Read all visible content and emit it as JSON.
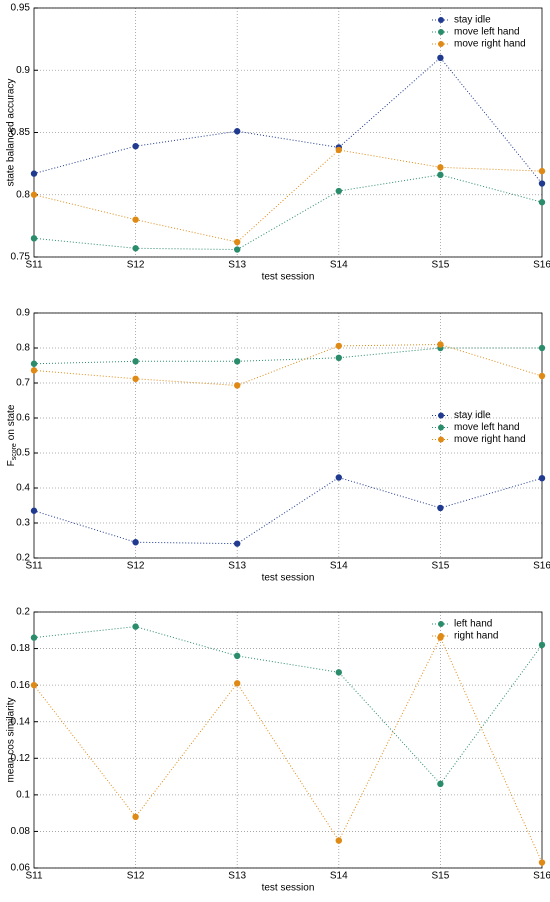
{
  "chart_data": [
    {
      "type": "line",
      "ylabel": "state balanced accuracy",
      "xlabel": "test session",
      "categories": [
        "S11",
        "S12",
        "S13",
        "S14",
        "S15",
        "S16"
      ],
      "series": [
        {
          "name": "stay idle",
          "color": "#1f3a8f",
          "values": [
            0.817,
            0.839,
            0.851,
            0.838,
            0.91,
            0.809
          ]
        },
        {
          "name": "move left hand",
          "color": "#2a8c6b",
          "values": [
            0.765,
            0.757,
            0.756,
            0.803,
            0.816,
            0.794
          ]
        },
        {
          "name": "move right hand",
          "color": "#e08a16",
          "values": [
            0.8,
            0.78,
            0.762,
            0.836,
            0.822,
            0.819
          ]
        }
      ],
      "ylim": [
        0.75,
        0.95
      ],
      "yticks": [
        0.75,
        0.8,
        0.85,
        0.9,
        0.95
      ],
      "grid": true,
      "legend": "upper right"
    },
    {
      "type": "line",
      "ylabel_parts": [
        "F",
        "score",
        "on state"
      ],
      "xlabel": "test session",
      "categories": [
        "S11",
        "S12",
        "S13",
        "S14",
        "S15",
        "S16"
      ],
      "series": [
        {
          "name": "stay idle",
          "color": "#1f3a8f",
          "values": [
            0.335,
            0.245,
            0.241,
            0.43,
            0.343,
            0.428
          ]
        },
        {
          "name": "move left hand",
          "color": "#2a8c6b",
          "values": [
            0.755,
            0.762,
            0.762,
            0.772,
            0.8,
            0.8
          ]
        },
        {
          "name": "move right hand",
          "color": "#e08a16",
          "values": [
            0.736,
            0.712,
            0.693,
            0.806,
            0.81,
            0.72
          ]
        }
      ],
      "ylim": [
        0.2,
        0.9
      ],
      "yticks": [
        0.2,
        0.3,
        0.4,
        0.5,
        0.6,
        0.7,
        0.8,
        0.9
      ],
      "grid": true,
      "legend": "center right"
    },
    {
      "type": "line",
      "ylabel": "mean cos similarity",
      "xlabel": "test session",
      "categories": [
        "S11",
        "S12",
        "S13",
        "S14",
        "S15",
        "S16"
      ],
      "series": [
        {
          "name": "left hand",
          "color": "#2a8c6b",
          "values": [
            0.186,
            0.192,
            0.176,
            0.167,
            0.106,
            0.182
          ]
        },
        {
          "name": "right hand",
          "color": "#e08a16",
          "values": [
            0.16,
            0.088,
            0.161,
            0.075,
            0.186,
            0.063
          ]
        }
      ],
      "ylim": [
        0.06,
        0.2
      ],
      "yticks": [
        0.06,
        0.08,
        0.1,
        0.12,
        0.14,
        0.16,
        0.18,
        0.2
      ],
      "grid": true,
      "legend": "upper right"
    }
  ]
}
